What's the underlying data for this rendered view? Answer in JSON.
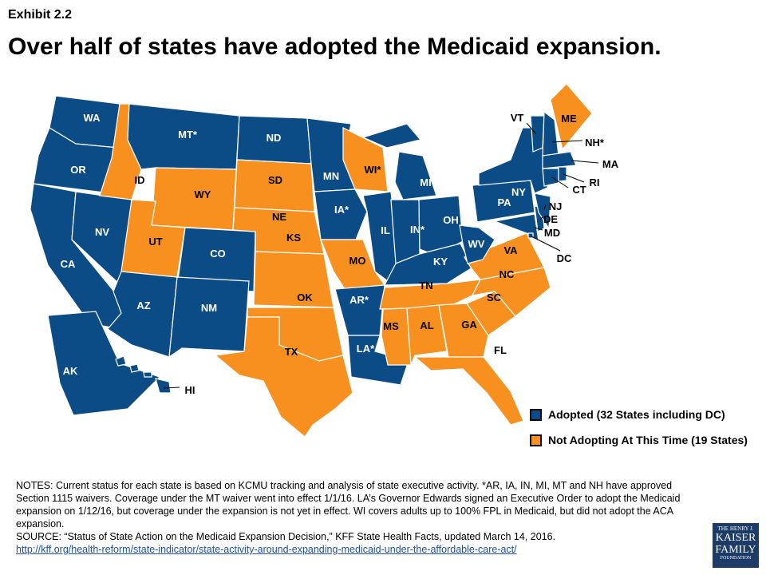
{
  "exhibit": "Exhibit 2.2",
  "title": "Over half of states have adopted the Medicaid expansion.",
  "colors": {
    "adopted": "#0b4c86",
    "not_adopting": "#f7901e"
  },
  "legend": [
    {
      "key": "adopted",
      "label": "Adopted (32 States including DC)"
    },
    {
      "key": "not_adopting",
      "label": "Not Adopting At This Time (19 States)"
    }
  ],
  "states": [
    {
      "id": "WA",
      "label": "WA",
      "status": "adopted"
    },
    {
      "id": "OR",
      "label": "OR",
      "status": "adopted"
    },
    {
      "id": "CA",
      "label": "CA",
      "status": "adopted"
    },
    {
      "id": "NV",
      "label": "NV",
      "status": "adopted"
    },
    {
      "id": "ID",
      "label": "ID",
      "status": "not_adopting"
    },
    {
      "id": "MT",
      "label": "MT*",
      "status": "adopted"
    },
    {
      "id": "WY",
      "label": "WY",
      "status": "not_adopting"
    },
    {
      "id": "UT",
      "label": "UT",
      "status": "not_adopting"
    },
    {
      "id": "CO",
      "label": "CO",
      "status": "adopted"
    },
    {
      "id": "AZ",
      "label": "AZ",
      "status": "adopted"
    },
    {
      "id": "NM",
      "label": "NM",
      "status": "adopted"
    },
    {
      "id": "ND",
      "label": "ND",
      "status": "adopted"
    },
    {
      "id": "SD",
      "label": "SD",
      "status": "not_adopting"
    },
    {
      "id": "NE",
      "label": "NE",
      "status": "not_adopting"
    },
    {
      "id": "KS",
      "label": "KS",
      "status": "not_adopting"
    },
    {
      "id": "OK",
      "label": "OK",
      "status": "not_adopting"
    },
    {
      "id": "TX",
      "label": "TX",
      "status": "not_adopting"
    },
    {
      "id": "MN",
      "label": "MN",
      "status": "adopted"
    },
    {
      "id": "IA",
      "label": "IA*",
      "status": "adopted"
    },
    {
      "id": "MO",
      "label": "MO",
      "status": "not_adopting"
    },
    {
      "id": "AR",
      "label": "AR*",
      "status": "adopted"
    },
    {
      "id": "LA",
      "label": "LA*",
      "status": "adopted"
    },
    {
      "id": "WI",
      "label": "WI*",
      "status": "not_adopting"
    },
    {
      "id": "IL",
      "label": "IL",
      "status": "adopted"
    },
    {
      "id": "MI",
      "label": "MI*",
      "status": "adopted"
    },
    {
      "id": "IN",
      "label": "IN*",
      "status": "adopted"
    },
    {
      "id": "OH",
      "label": "OH",
      "status": "adopted"
    },
    {
      "id": "KY",
      "label": "KY",
      "status": "adopted"
    },
    {
      "id": "TN",
      "label": "TN",
      "status": "not_adopting"
    },
    {
      "id": "MS",
      "label": "MS",
      "status": "not_adopting"
    },
    {
      "id": "AL",
      "label": "AL",
      "status": "not_adopting"
    },
    {
      "id": "GA",
      "label": "GA",
      "status": "not_adopting"
    },
    {
      "id": "FL",
      "label": "FL",
      "status": "not_adopting"
    },
    {
      "id": "SC",
      "label": "SC",
      "status": "not_adopting"
    },
    {
      "id": "NC",
      "label": "NC",
      "status": "not_adopting"
    },
    {
      "id": "VA",
      "label": "VA",
      "status": "not_adopting"
    },
    {
      "id": "WV",
      "label": "WV",
      "status": "adopted"
    },
    {
      "id": "PA",
      "label": "PA",
      "status": "adopted"
    },
    {
      "id": "NY",
      "label": "NY",
      "status": "adopted"
    },
    {
      "id": "MD",
      "label": "MD",
      "status": "adopted"
    },
    {
      "id": "DE",
      "label": "DE",
      "status": "adopted"
    },
    {
      "id": "NJ",
      "label": "NJ",
      "status": "adopted"
    },
    {
      "id": "VT",
      "label": "VT",
      "status": "adopted"
    },
    {
      "id": "NH",
      "label": "NH*",
      "status": "adopted"
    },
    {
      "id": "ME",
      "label": "ME",
      "status": "not_adopting"
    },
    {
      "id": "MA",
      "label": "MA",
      "status": "adopted"
    },
    {
      "id": "CT",
      "label": "CT",
      "status": "adopted"
    },
    {
      "id": "RI",
      "label": "RI",
      "status": "adopted"
    },
    {
      "id": "DC",
      "label": "DC",
      "status": "adopted"
    },
    {
      "id": "AK",
      "label": "AK",
      "status": "adopted"
    },
    {
      "id": "HI",
      "label": "HI",
      "status": "adopted"
    }
  ],
  "notes": {
    "text": "NOTES: Current status for each state is based on KCMU tracking and analysis of state executive activity. *AR, IA, IN, MI, MT and NH have approved Section 1115 waivers. Coverage under the MT waiver went into effect 1/1/16. LA’s Governor Edwards signed an Executive Order to adopt the Medicaid expansion on 1/12/16, but coverage under the expansion is not yet in effect. WI covers adults up to 100% FPL in Medicaid, but did not adopt the ACA expansion.",
    "source": "SOURCE: “Status of State Action on the Medicaid Expansion Decision,” KFF State Health Facts, updated March 14, 2016.",
    "link": "http://kff.org/health-reform/state-indicator/state-activity-around-expanding-medicaid-under-the-affordable-care-act/"
  },
  "logo": {
    "line1": "THE HENRY J.",
    "line2": "KAISER",
    "line3": "FAMILY",
    "line4": "FOUNDATION"
  }
}
